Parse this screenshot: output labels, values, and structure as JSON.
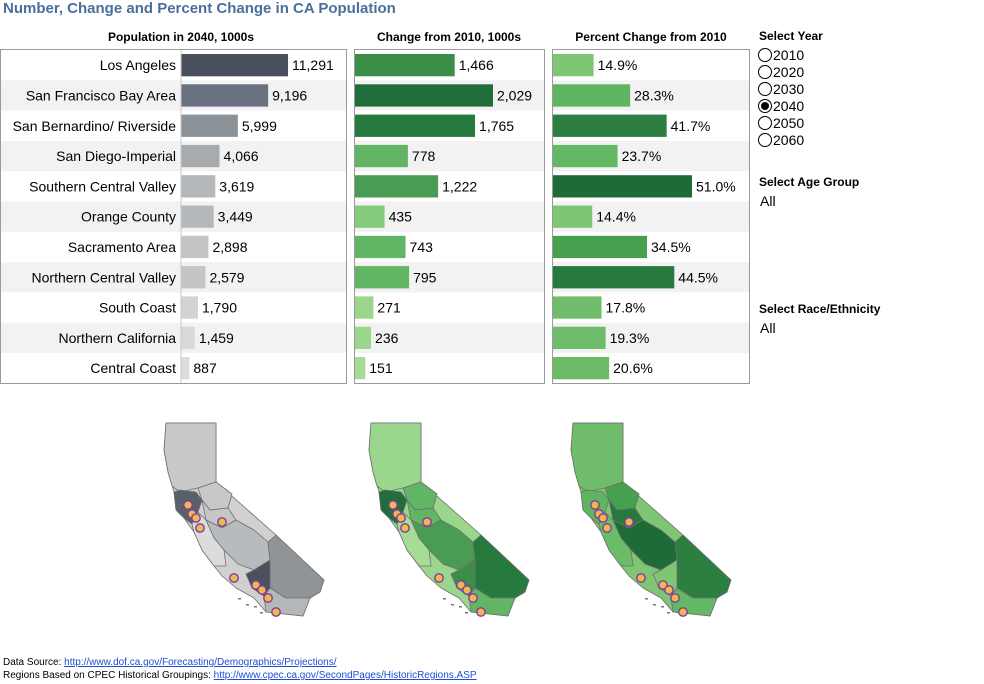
{
  "title": "Number, Change and Percent Change in CA Population",
  "columns": {
    "population": "Population in 2040, 1000s",
    "change": "Change from 2010, 1000s",
    "percent": "Percent Change from 2010"
  },
  "chart_data": {
    "type": "bar",
    "orientation": "horizontal",
    "categories": [
      "Los Angeles",
      "San Francisco Bay Area",
      "San Bernardino/ Riverside",
      "San Diego-Imperial",
      "Southern Central Valley",
      "Orange County",
      "Sacramento Area",
      "Northern Central Valley",
      "South Coast",
      "Northern California",
      "Central Coast"
    ],
    "series": [
      {
        "name": "Population in 2040, 1000s",
        "values": [
          11291,
          9196,
          5999,
          4066,
          3619,
          3449,
          2898,
          2579,
          1790,
          1459,
          887
        ],
        "labels": [
          "11,291",
          "9,196",
          "5,999",
          "4,066",
          "3,619",
          "3,449",
          "2,898",
          "2,579",
          "1,790",
          "1,459",
          "887"
        ]
      },
      {
        "name": "Change from 2010, 1000s",
        "values": [
          1466,
          2029,
          1765,
          778,
          1222,
          435,
          743,
          795,
          271,
          236,
          151
        ],
        "labels": [
          "1,466",
          "2,029",
          "1,765",
          "778",
          "1,222",
          "435",
          "743",
          "795",
          "271",
          "236",
          "151"
        ]
      },
      {
        "name": "Percent Change from 2010",
        "values": [
          14.9,
          28.3,
          41.7,
          23.7,
          51.0,
          14.4,
          34.5,
          44.5,
          17.8,
          19.3,
          20.6
        ],
        "labels": [
          "14.9%",
          "28.3%",
          "41.7%",
          "23.7%",
          "51.0%",
          "14.4%",
          "34.5%",
          "44.5%",
          "17.8%",
          "19.3%",
          "20.6%"
        ]
      }
    ],
    "colors": {
      "population_shades": [
        "#4a505e",
        "#6a7180",
        "#8b9298",
        "#a7abad",
        "#b4b8ba",
        "#b4b8ba",
        "#c3c5c6",
        "#c3c5c6",
        "#d2d3d4",
        "#d9d9d9",
        "#dcdcdc"
      ],
      "change_shades": [
        "#3a8e48",
        "#226e3a",
        "#277a3e",
        "#61b565",
        "#4a9c52",
        "#84cc7c",
        "#61b565",
        "#61b565",
        "#9ad68c",
        "#9ad68c",
        "#a6dc96"
      ],
      "percent_shades": [
        "#7ec674",
        "#5fb461",
        "#2c7f41",
        "#63b865",
        "#1f6b38",
        "#7ec674",
        "#46a050",
        "#267a3d",
        "#6fbd6a",
        "#6fbd6a",
        "#6bbb68"
      ]
    }
  },
  "controls": {
    "year_title": "Select Year",
    "years": [
      "2010",
      "2020",
      "2030",
      "2040",
      "2050",
      "2060"
    ],
    "selected_year": "2040",
    "age_title": "Select Age Group",
    "age_value": "All",
    "race_title": "Select Race/Ethnicity",
    "race_value": "All"
  },
  "footer": {
    "source_label": "Data Source: ",
    "source_link": "http://www.dof.ca.gov/Forecasting/Demographics/Projections/",
    "regions_label": "Regions Based on CPEC Historical Groupings: ",
    "regions_link": "http://www.cpec.ca.gov/SecondPages/HistoricRegions.ASP"
  },
  "maps": {
    "population": {
      "base": "#d0d0d0",
      "north": "#c8c8c8",
      "sac": "#c8c8c8",
      "bay": "#5a5f6c",
      "ncv": "#c6c6c6",
      "scv": "#b8bbbd",
      "coast": "#dcdcdc",
      "southeast": "#8f9499",
      "la": "#4a505e",
      "south": "#b4b8ba"
    },
    "change": {
      "base": "#9ad68c",
      "north": "#9ad68c",
      "sac": "#61b565",
      "bay": "#226e3a",
      "ncv": "#61b565",
      "scv": "#4a9c52",
      "coast": "#a6dc96",
      "southeast": "#277a3e",
      "la": "#3a8e48",
      "south": "#61b565"
    },
    "percent": {
      "base": "#7ec674",
      "north": "#6fbd6a",
      "sac": "#46a050",
      "bay": "#5fb461",
      "ncv": "#267a3d",
      "scv": "#1f6b38",
      "coast": "#6bbb68",
      "southeast": "#2c7f41",
      "la": "#7ec674",
      "south": "#63b865"
    }
  }
}
